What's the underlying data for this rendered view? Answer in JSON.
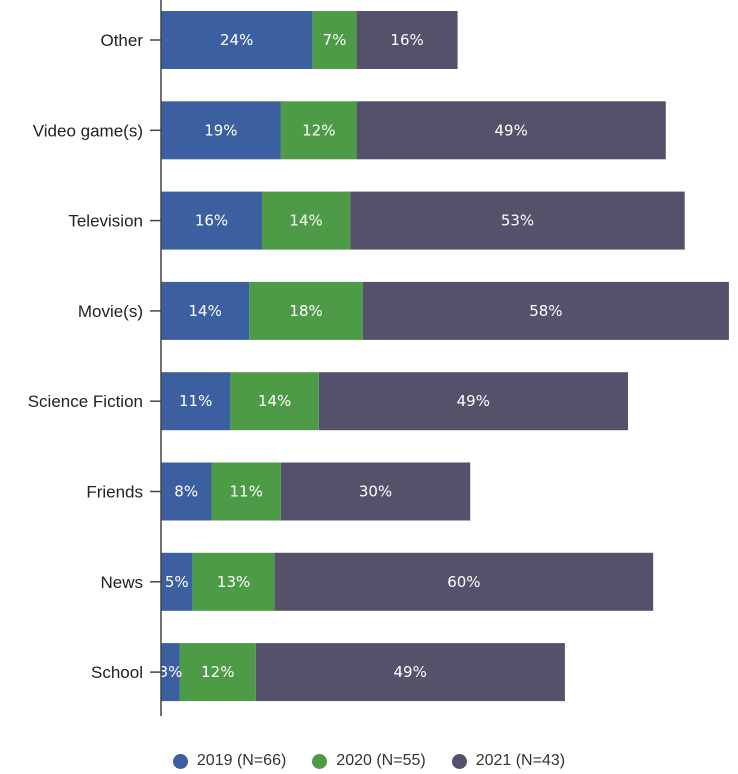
{
  "chart_data": {
    "type": "bar",
    "orientation": "horizontal",
    "stacked": true,
    "categories": [
      "Other",
      "Video game(s)",
      "Television",
      "Movie(s)",
      "Science Fiction",
      "Friends",
      "News",
      "School"
    ],
    "series": [
      {
        "name": "2019 (N=66)",
        "color": "#3c5f9f",
        "values": [
          24,
          19,
          16,
          14,
          11,
          8,
          5,
          3
        ],
        "labels": [
          "24%",
          "19%",
          "16%",
          "14%",
          "11%",
          "8%",
          "5%",
          "3%"
        ]
      },
      {
        "name": "2020 (N=55)",
        "color": "#4e9b47",
        "values": [
          7,
          12,
          14,
          18,
          14,
          11,
          13,
          12
        ],
        "labels": [
          "7%",
          "12%",
          "14%",
          "18%",
          "14%",
          "11%",
          "13%",
          "12%"
        ]
      },
      {
        "name": "2021 (N=43)",
        "color": "#53526a",
        "values": [
          16,
          49,
          53,
          58,
          49,
          30,
          60,
          49
        ],
        "labels": [
          "16%",
          "49%",
          "53%",
          "58%",
          "49%",
          "30%",
          "60%",
          "49%"
        ]
      }
    ],
    "title": "",
    "xlabel": "",
    "ylabel": "",
    "grid": false,
    "legend_position": "bottom"
  }
}
